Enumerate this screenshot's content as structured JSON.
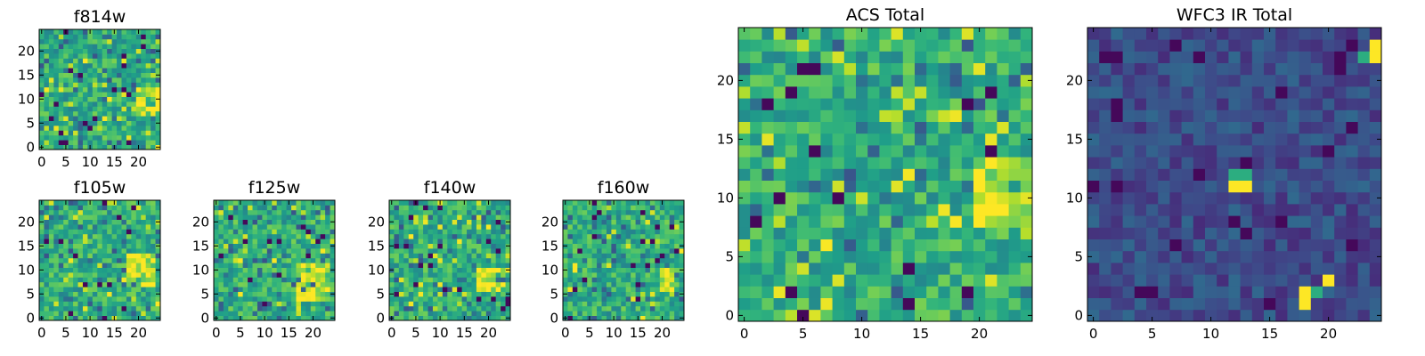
{
  "chart_data": [
    {
      "type": "heatmap",
      "title": "f814w",
      "grid": false,
      "size": [
        25,
        25
      ],
      "xlim": [
        -0.5,
        24.5
      ],
      "ylim": [
        -0.5,
        24.5
      ],
      "xticks": [
        0,
        5,
        10,
        15,
        20
      ],
      "yticks": [
        0,
        5,
        10,
        15,
        20
      ],
      "colormap": "viridis",
      "bright_region": {
        "x": [
          20,
          24
        ],
        "y": [
          8,
          12
        ]
      }
    },
    {
      "type": "heatmap",
      "title": "f105w",
      "grid": false,
      "size": [
        25,
        25
      ],
      "xlim": [
        -0.5,
        24.5
      ],
      "ylim": [
        -0.5,
        24.5
      ],
      "xticks": [
        0,
        5,
        10,
        15,
        20
      ],
      "yticks": [
        0,
        5,
        10,
        15,
        20
      ],
      "colormap": "viridis",
      "bright_region": {
        "x": [
          18,
          23
        ],
        "y": [
          7,
          13
        ]
      }
    },
    {
      "type": "heatmap",
      "title": "f125w",
      "grid": false,
      "size": [
        25,
        25
      ],
      "xlim": [
        -0.5,
        24.5
      ],
      "ylim": [
        -0.5,
        24.5
      ],
      "xticks": [
        0,
        5,
        10,
        15,
        20
      ],
      "yticks": [
        0,
        5,
        10,
        15,
        20
      ],
      "colormap": "viridis",
      "bright_region": {
        "x": [
          17,
          23
        ],
        "y": [
          4,
          11
        ]
      }
    },
    {
      "type": "heatmap",
      "title": "f140w",
      "grid": false,
      "size": [
        25,
        25
      ],
      "xlim": [
        -0.5,
        24.5
      ],
      "ylim": [
        -0.5,
        24.5
      ],
      "xticks": [
        0,
        5,
        10,
        15,
        20
      ],
      "yticks": [
        0,
        5,
        10,
        15,
        20
      ],
      "colormap": "viridis",
      "bright_region": {
        "x": [
          18,
          23
        ],
        "y": [
          6,
          10
        ]
      }
    },
    {
      "type": "heatmap",
      "title": "f160w",
      "grid": false,
      "size": [
        25,
        25
      ],
      "xlim": [
        -0.5,
        24.5
      ],
      "ylim": [
        -0.5,
        24.5
      ],
      "xticks": [
        0,
        5,
        10,
        15,
        20
      ],
      "yticks": [
        0,
        5,
        10,
        15,
        20
      ],
      "colormap": "viridis",
      "bright_region": {
        "x": [
          20,
          23
        ],
        "y": [
          6,
          10
        ]
      }
    },
    {
      "type": "heatmap",
      "title": "ACS Total",
      "grid": false,
      "size": [
        25,
        25
      ],
      "xlim": [
        -0.5,
        24.5
      ],
      "ylim": [
        -0.5,
        24.5
      ],
      "xticks": [
        0,
        5,
        10,
        15,
        20
      ],
      "yticks": [
        0,
        5,
        10,
        15,
        20
      ],
      "colormap": "viridis",
      "bright_region": {
        "x": [
          20,
          24
        ],
        "y": [
          8,
          13
        ]
      }
    },
    {
      "type": "heatmap",
      "title": "WFC3 IR Total",
      "grid": false,
      "size": [
        25,
        25
      ],
      "xlim": [
        -0.5,
        24.5
      ],
      "ylim": [
        -0.5,
        24.5
      ],
      "xticks": [
        0,
        5,
        10,
        15,
        20
      ],
      "yticks": [
        0,
        5,
        10,
        15,
        20
      ],
      "colormap": "viridis",
      "background_level": "low",
      "bright_pixels": [
        {
          "x": 12,
          "y": 11,
          "level": "high"
        },
        {
          "x": 13,
          "y": 11,
          "level": "high"
        },
        {
          "x": 12,
          "y": 12,
          "level": "mid"
        },
        {
          "x": 13,
          "y": 12,
          "level": "mid"
        },
        {
          "x": 18,
          "y": 1,
          "level": "high"
        },
        {
          "x": 18,
          "y": 2,
          "level": "high"
        },
        {
          "x": 19,
          "y": 2,
          "level": "mid"
        },
        {
          "x": 20,
          "y": 3,
          "level": "high"
        },
        {
          "x": 24,
          "y": 22,
          "level": "high"
        },
        {
          "x": 24,
          "y": 23,
          "level": "high"
        },
        {
          "x": 23,
          "y": 22,
          "level": "mid"
        }
      ]
    }
  ]
}
